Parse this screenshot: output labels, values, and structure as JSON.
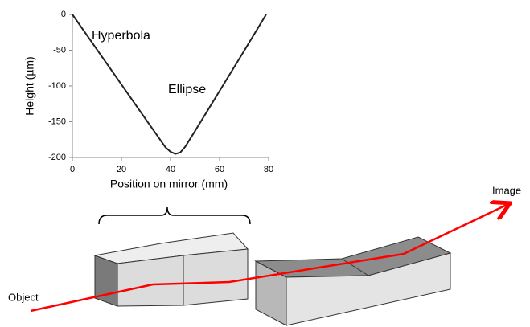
{
  "chart_data": {
    "type": "line",
    "x_label": "Position on mirror (mm)",
    "y_label": "Height (µm)",
    "annotations": [
      "Hyperbola",
      "Ellipse"
    ],
    "x": [
      0,
      10,
      20,
      30,
      38,
      40,
      42,
      44,
      46,
      50,
      60,
      70,
      79
    ],
    "series": [
      {
        "color": "#222222",
        "values": [
          0,
          -49,
          -98,
          -147,
          -186,
          -192,
          -195,
          -193,
          -185,
          -163,
          -107,
          -51,
          0
        ]
      }
    ],
    "xlim": [
      0,
      80
    ],
    "ylim": [
      -200,
      0
    ],
    "xticks": [
      0,
      20,
      40,
      60,
      80
    ],
    "yticks": [
      0,
      -50,
      -100,
      -150,
      -200
    ],
    "grid": false
  },
  "diagram": {
    "labels": [
      "Object",
      "Image"
    ]
  }
}
